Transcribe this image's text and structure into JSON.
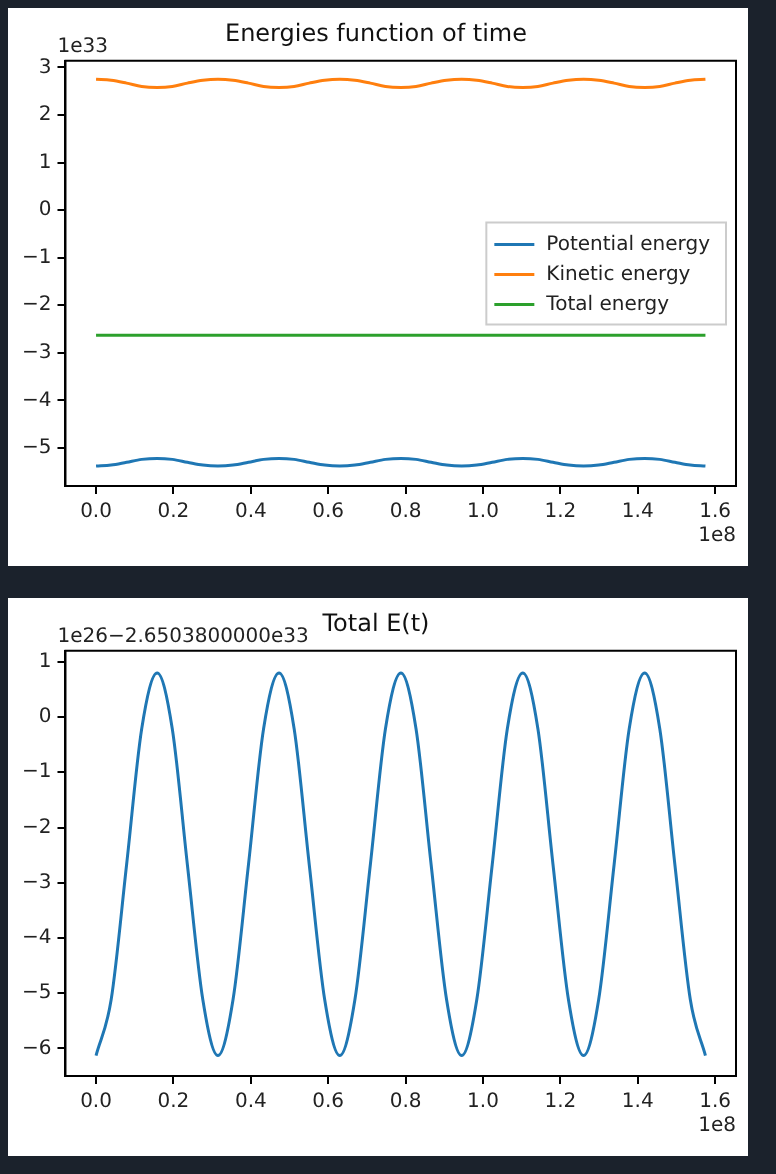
{
  "chart_data": [
    {
      "type": "line",
      "title": "Energies function of time",
      "x": [
        0,
        0.039,
        0.079,
        0.118,
        0.158,
        0.197,
        0.236,
        0.276,
        0.315,
        0.354,
        0.394,
        0.433,
        0.473,
        0.512,
        0.551,
        0.591,
        0.63,
        0.669,
        0.709,
        0.748,
        0.788,
        0.827,
        0.866,
        0.906,
        0.945,
        0.984,
        1.024,
        1.063,
        1.103,
        1.142,
        1.181,
        1.221,
        1.26,
        1.299,
        1.339,
        1.378,
        1.418,
        1.457,
        1.496,
        1.536,
        1.575
      ],
      "series": [
        {
          "name": "Potential energy",
          "color": "#1f77b4",
          "values": [
            -5.38,
            -5.36,
            -5.3,
            -5.24,
            -5.22,
            -5.24,
            -5.3,
            -5.36,
            -5.38,
            -5.36,
            -5.3,
            -5.24,
            -5.22,
            -5.24,
            -5.3,
            -5.36,
            -5.38,
            -5.36,
            -5.3,
            -5.24,
            -5.22,
            -5.24,
            -5.3,
            -5.36,
            -5.38,
            -5.36,
            -5.3,
            -5.24,
            -5.22,
            -5.24,
            -5.3,
            -5.36,
            -5.38,
            -5.36,
            -5.3,
            -5.24,
            -5.22,
            -5.24,
            -5.3,
            -5.36,
            -5.38
          ]
        },
        {
          "name": "Kinetic energy",
          "color": "#ff7f0e",
          "values": [
            2.75,
            2.73,
            2.67,
            2.6,
            2.58,
            2.6,
            2.67,
            2.73,
            2.75,
            2.73,
            2.67,
            2.6,
            2.58,
            2.6,
            2.67,
            2.73,
            2.75,
            2.73,
            2.67,
            2.6,
            2.58,
            2.6,
            2.67,
            2.73,
            2.75,
            2.73,
            2.67,
            2.6,
            2.58,
            2.6,
            2.67,
            2.73,
            2.75,
            2.73,
            2.67,
            2.6,
            2.58,
            2.6,
            2.67,
            2.73,
            2.75
          ]
        },
        {
          "name": "Total energy",
          "color": "#2ca02c",
          "values": [
            -2.63,
            -2.63,
            -2.63,
            -2.63,
            -2.63,
            -2.63,
            -2.63,
            -2.63,
            -2.63,
            -2.63,
            -2.63,
            -2.63,
            -2.63,
            -2.63,
            -2.63,
            -2.63,
            -2.63,
            -2.63,
            -2.63,
            -2.63,
            -2.63,
            -2.63,
            -2.63,
            -2.63,
            -2.63,
            -2.63,
            -2.63,
            -2.63,
            -2.63,
            -2.63,
            -2.63,
            -2.63,
            -2.63,
            -2.63,
            -2.63,
            -2.63,
            -2.63,
            -2.63,
            -2.63,
            -2.63,
            -2.63
          ]
        }
      ],
      "xlim": [
        -0.079,
        1.654
      ],
      "xticks": [
        {
          "value": 0,
          "label": "0.0"
        },
        {
          "value": 0.2,
          "label": "0.2"
        },
        {
          "value": 0.4,
          "label": "0.4"
        },
        {
          "value": 0.6,
          "label": "0.6"
        },
        {
          "value": 0.8,
          "label": "0.8"
        },
        {
          "value": 1,
          "label": "1.0"
        },
        {
          "value": 1.2,
          "label": "1.2"
        },
        {
          "value": 1.4,
          "label": "1.4"
        },
        {
          "value": 1.6,
          "label": "1.6"
        }
      ],
      "ylim": [
        -5.8,
        3.14
      ],
      "yticks": [
        {
          "value": -5,
          "label": "−5"
        },
        {
          "value": -4,
          "label": "−4"
        },
        {
          "value": -3,
          "label": "−3"
        },
        {
          "value": -2,
          "label": "−2"
        },
        {
          "value": -1,
          "label": "−1"
        },
        0,
        1,
        2,
        3
      ],
      "annotations": [
        "1e33",
        "1e8"
      ],
      "legend": "center right",
      "grid": false,
      "marker": "none",
      "line_style": "solid"
    },
    {
      "type": "line",
      "title": "Total E(t)",
      "x": [
        0,
        0.039,
        0.079,
        0.118,
        0.158,
        0.197,
        0.236,
        0.276,
        0.315,
        0.354,
        0.394,
        0.433,
        0.473,
        0.512,
        0.551,
        0.591,
        0.63,
        0.669,
        0.709,
        0.748,
        0.788,
        0.827,
        0.866,
        0.906,
        0.945,
        0.984,
        1.024,
        1.063,
        1.103,
        1.142,
        1.181,
        1.221,
        1.26,
        1.299,
        1.339,
        1.378,
        1.418,
        1.457,
        1.496,
        1.536,
        1.575
      ],
      "series": [
        {
          "color": "#1f77b4",
          "values": [
            -6.13,
            -5.12,
            -2.67,
            -0.21,
            0.8,
            -0.21,
            -2.67,
            -5.12,
            -6.13,
            -5.12,
            -2.67,
            -0.21,
            0.8,
            -0.21,
            -2.67,
            -5.12,
            -6.13,
            -5.12,
            -2.67,
            -0.21,
            0.8,
            -0.21,
            -2.67,
            -5.12,
            -6.13,
            -5.12,
            -2.67,
            -0.21,
            0.8,
            -0.21,
            -2.67,
            -5.12,
            -6.13,
            -5.12,
            -2.67,
            -0.21,
            0.8,
            -0.21,
            -2.67,
            -5.12,
            -6.13
          ]
        }
      ],
      "xlim": [
        -0.079,
        1.654
      ],
      "xticks": [
        {
          "value": 0,
          "label": "0.0"
        },
        {
          "value": 0.2,
          "label": "0.2"
        },
        {
          "value": 0.4,
          "label": "0.4"
        },
        {
          "value": 0.6,
          "label": "0.6"
        },
        {
          "value": 0.8,
          "label": "0.8"
        },
        {
          "value": 1,
          "label": "1.0"
        },
        {
          "value": 1.2,
          "label": "1.2"
        },
        {
          "value": 1.4,
          "label": "1.4"
        },
        {
          "value": 1.6,
          "label": "1.6"
        }
      ],
      "ylim": [
        -6.5,
        1.2
      ],
      "yticks": [
        {
          "value": -6,
          "label": "−6"
        },
        {
          "value": -5,
          "label": "−5"
        },
        {
          "value": -4,
          "label": "−4"
        },
        {
          "value": -3,
          "label": "−3"
        },
        {
          "value": -2,
          "label": "−2"
        },
        {
          "value": -1,
          "label": "−1"
        },
        0,
        1
      ],
      "annotations": [
        "1e26−2.6503800000e33",
        "1e8"
      ],
      "grid": false,
      "marker": "none",
      "line_style": "solid"
    }
  ]
}
